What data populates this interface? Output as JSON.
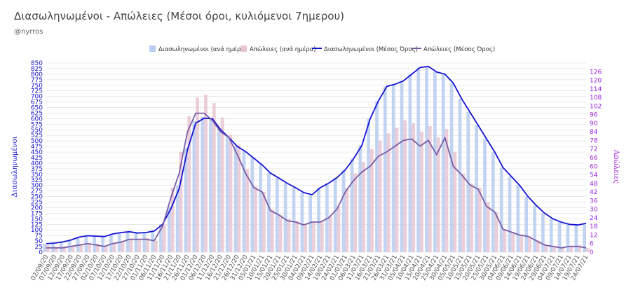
{
  "header": {
    "title": "Διασωληνωμένοι - Απώλειες (Μέσοι όροι, κυλιόμενοι 7ημερου)",
    "subtitle": "@nyrros"
  },
  "colors": {
    "intubated_bar": "#b8cdf0",
    "deaths_bar": "#e8c5d2",
    "intubated_line": "#1414d2",
    "deaths_line": "#7a5ca6",
    "left_axis": "#1414d2",
    "right_axis": "#9a1ee0",
    "grid": "#dcdcdc"
  },
  "chart_data": {
    "type": "bar",
    "x_start": "02/09/20",
    "x_end": "28/07/21",
    "x_step_days": 5,
    "x_labels": [
      "02/09/20",
      "07/09/20",
      "12/09/20",
      "17/09/20",
      "22/09/20",
      "27/09/20",
      "02/10/20",
      "07/10/20",
      "12/10/20",
      "17/10/20",
      "22/10/20",
      "27/10/20",
      "01/11/20",
      "06/11/20",
      "11/11/20",
      "16/11/20",
      "21/11/20",
      "26/11/20",
      "01/12/20",
      "06/12/20",
      "11/12/20",
      "16/12/20",
      "21/12/20",
      "26/12/20",
      "31/12/20",
      "05/01/21",
      "10/01/21",
      "15/01/21",
      "20/01/21",
      "25/01/21",
      "30/01/21",
      "04/02/21",
      "09/02/21",
      "14/02/21",
      "19/02/21",
      "24/02/21",
      "01/03/21",
      "06/03/21",
      "11/03/21",
      "16/03/21",
      "21/03/21",
      "26/03/21",
      "31/03/21",
      "05/04/21",
      "10/04/21",
      "15/04/21",
      "20/04/21",
      "25/04/21",
      "30/04/21",
      "05/05/21",
      "10/05/21",
      "15/05/21",
      "20/05/21",
      "25/05/21",
      "30/05/21",
      "04/06/21",
      "09/06/21",
      "14/06/21",
      "19/06/21",
      "24/06/21",
      "29/06/21",
      "04/07/21",
      "09/07/21",
      "14/07/21",
      "19/07/21",
      "24/07/21"
    ],
    "left_axis": {
      "title": "Διασωληνωμένοι",
      "min": 0,
      "max": 850,
      "ticks": [
        0,
        25,
        50,
        75,
        100,
        125,
        150,
        175,
        200,
        225,
        250,
        275,
        300,
        325,
        350,
        375,
        400,
        425,
        450,
        475,
        500,
        525,
        550,
        575,
        600,
        625,
        650,
        675,
        700,
        725,
        750,
        775,
        800,
        825,
        850
      ]
    },
    "right_axis": {
      "title": "Απώλειες",
      "min": 0,
      "max": 132,
      "ticks": [
        0,
        6,
        12,
        18,
        24,
        30,
        36,
        42,
        48,
        54,
        60,
        66,
        72,
        78,
        84,
        90,
        96,
        102,
        108,
        114,
        120,
        126
      ]
    },
    "legend": {
      "position": "top",
      "items": [
        "Διασωληνωμένοι (ανά ημέρα)",
        "Απώλειες (ανά ημέρα)",
        "Διασωληνωμένοι (Μέσος Όρος)",
        "Απώλειες (Μέσος Όρος)"
      ]
    },
    "series": [
      {
        "name": "Διασωληνωμένοι (ανά ημέρα)",
        "kind": "bar",
        "axis": "left",
        "values": [
          38,
          41,
          46,
          55,
          68,
          74,
          72,
          70,
          82,
          88,
          92,
          86,
          88,
          95,
          125,
          205,
          300,
          470,
          590,
          608,
          600,
          555,
          520,
          478,
          455,
          425,
          395,
          355,
          332,
          310,
          290,
          268,
          255,
          290,
          310,
          335,
          370,
          420,
          480,
          600,
          680,
          745,
          755,
          770,
          800,
          830,
          835,
          810,
          800,
          760,
          690,
          630,
          570,
          510,
          450,
          380,
          340,
          300,
          250,
          210,
          175,
          150,
          135,
          125,
          122,
          130
        ]
      },
      {
        "name": "Απώλειες (ανά ημέρα)",
        "kind": "bar",
        "axis": "right",
        "values": [
          5,
          3,
          4,
          4,
          5,
          6,
          6,
          4,
          6,
          7,
          9,
          9,
          10,
          8,
          20,
          45,
          70,
          95,
          108,
          110,
          104,
          94,
          82,
          75,
          58,
          46,
          42,
          30,
          26,
          23,
          22,
          19,
          21,
          22,
          25,
          32,
          45,
          55,
          63,
          72,
          78,
          83,
          87,
          92,
          90,
          84,
          88,
          80,
          86,
          70,
          55,
          48,
          45,
          35,
          28,
          16,
          14,
          12,
          11,
          8,
          5,
          4,
          3,
          4,
          5,
          3
        ]
      },
      {
        "name": "Διασωληνωμένοι (Μέσος Όρος)",
        "kind": "line",
        "axis": "left",
        "values": [
          38,
          41,
          46,
          55,
          68,
          74,
          72,
          70,
          82,
          88,
          92,
          86,
          88,
          95,
          125,
          195,
          285,
          460,
          580,
          602,
          600,
          550,
          515,
          475,
          452,
          422,
          392,
          355,
          333,
          310,
          290,
          268,
          258,
          290,
          310,
          335,
          370,
          420,
          480,
          600,
          680,
          745,
          755,
          770,
          800,
          830,
          835,
          810,
          800,
          760,
          690,
          630,
          570,
          510,
          450,
          380,
          340,
          300,
          250,
          210,
          175,
          150,
          135,
          125,
          122,
          130
        ]
      },
      {
        "name": "Απώλειες (Μέσος Όρος)",
        "kind": "line",
        "axis": "right",
        "values": [
          3,
          3,
          3,
          4,
          5,
          6,
          5,
          4,
          6,
          7,
          9,
          9,
          9,
          8,
          18,
          38,
          55,
          84,
          97,
          97,
          92,
          84,
          80,
          68,
          55,
          45,
          42,
          29,
          26,
          22,
          21,
          19,
          21,
          21,
          24,
          30,
          42,
          50,
          56,
          60,
          67,
          70,
          74,
          78,
          79,
          74,
          78,
          68,
          80,
          60,
          54,
          47,
          44,
          32,
          28,
          16,
          14,
          12,
          11,
          8,
          5,
          4,
          3,
          4,
          4,
          3
        ]
      }
    ]
  }
}
